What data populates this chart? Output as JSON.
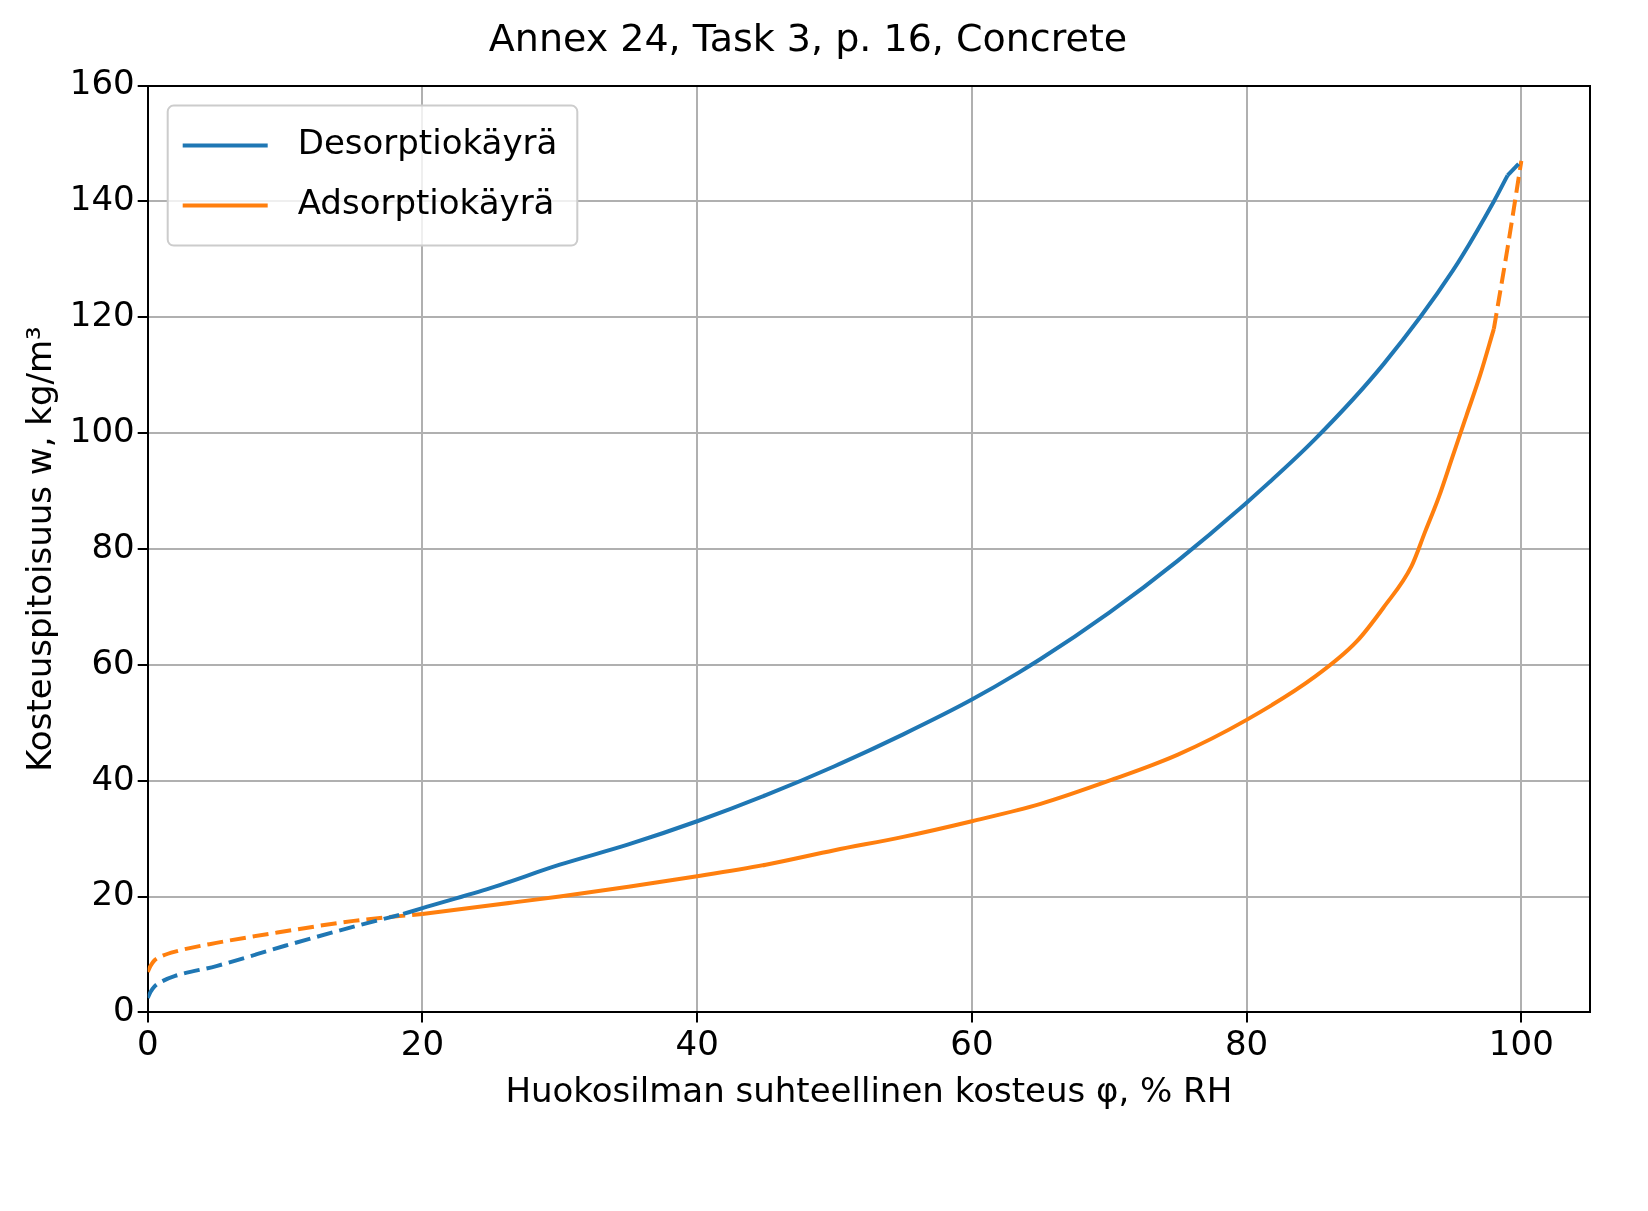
{
  "chart_data": {
    "type": "line",
    "title": "Annex 24, Task 3, p. 16, Concrete",
    "xlabel": "Huokosilman suhteellinen kosteus φ, % RH",
    "ylabel": "Kosteuspitoisuus w, kg/m³",
    "xlim": [
      0,
      105
    ],
    "xticks": [
      0,
      20,
      40,
      60,
      80,
      100
    ],
    "ylim": [
      0,
      160
    ],
    "yticks": [
      0,
      20,
      40,
      60,
      80,
      100,
      120,
      140,
      160
    ],
    "grid": true,
    "legend": "top left",
    "marker": "none",
    "series": [
      {
        "name": "Desorptiokäyrä",
        "color": "#1f77b4",
        "line_style": "solid",
        "x": [
          18.6,
          20,
          25,
          30,
          35,
          40,
          45,
          50,
          55,
          60,
          65,
          70,
          75,
          80,
          85,
          90,
          95,
          98,
          99
        ],
        "values": [
          17,
          18,
          21.5,
          25.5,
          29,
          33,
          37.5,
          42.5,
          48,
          54,
          61,
          69,
          78,
          88,
          99,
          112,
          128,
          140,
          144.5
        ]
      },
      {
        "color": "#1f77b4",
        "line_style": "dashed",
        "x": [
          0,
          0.2,
          0.5,
          1,
          2,
          5,
          10,
          15,
          18.6
        ],
        "values": [
          2.5,
          3.5,
          4.5,
          5.3,
          6.3,
          8,
          11.5,
          14.8,
          17
        ]
      },
      {
        "color": "#1f77b4",
        "line_style": "dashed",
        "x": [
          99,
          100
        ],
        "values": [
          144.5,
          147
        ]
      },
      {
        "name": "Adsorptiokäyrä",
        "color": "#ff7f0e",
        "line_style": "solid",
        "x": [
          20,
          25,
          30,
          35,
          40,
          45,
          50,
          55,
          60,
          65,
          70,
          75,
          80,
          85,
          88,
          90,
          92,
          93,
          94,
          95,
          96,
          97,
          98
        ],
        "values": [
          17,
          18.5,
          20,
          21.7,
          23.5,
          25.5,
          28,
          30.3,
          33,
          36,
          40,
          44.5,
          50.5,
          58,
          64,
          70,
          77,
          83,
          89,
          96,
          103,
          110,
          118
        ]
      },
      {
        "color": "#ff7f0e",
        "line_style": "dashed",
        "x": [
          0,
          0.2,
          0.5,
          1,
          2,
          5,
          10,
          15,
          20
        ],
        "values": [
          7,
          8,
          9,
          9.7,
          10.5,
          12,
          14,
          15.8,
          17
        ]
      },
      {
        "color": "#ff7f0e",
        "line_style": "dashed",
        "x": [
          98,
          99,
          100
        ],
        "values": [
          118,
          132,
          147
        ]
      }
    ]
  }
}
